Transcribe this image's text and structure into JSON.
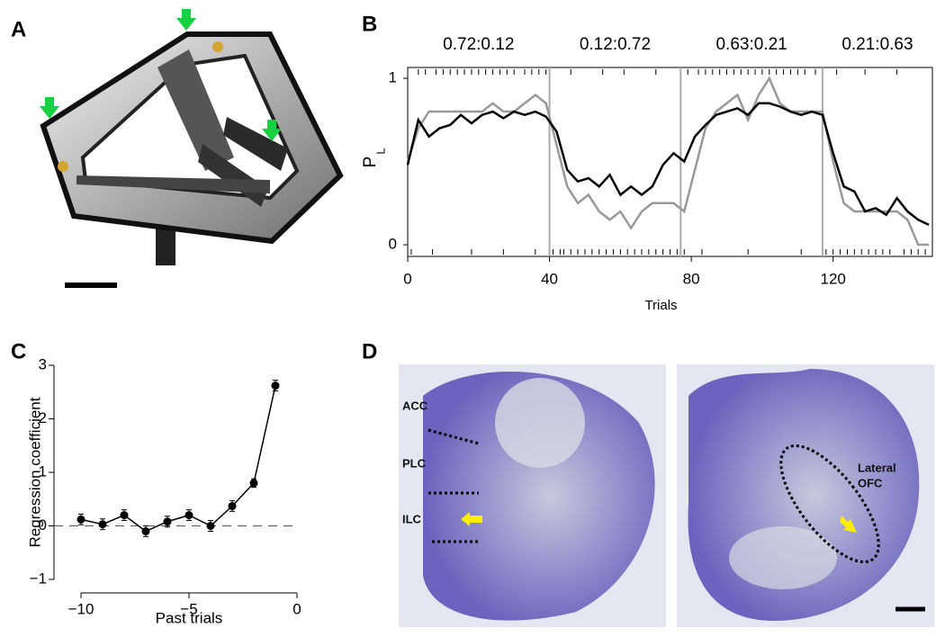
{
  "panel_labels": [
    "A",
    "B",
    "C",
    "D"
  ],
  "histology_labels": {
    "left": [
      "ACC",
      "PLC",
      "ILC"
    ],
    "right": [
      "Lateral",
      "OFC"
    ]
  },
  "chart_data": [
    {
      "type": "line",
      "ylabel": "P",
      "ylabel_subscript": "L",
      "xlabel": "Trials",
      "xlim": [
        0,
        148
      ],
      "ylim": [
        -0.07,
        1.065
      ],
      "xticks": [
        0,
        40,
        80,
        120
      ],
      "yticks": [
        0,
        1
      ],
      "block_boundaries": [
        40,
        77,
        117
      ],
      "annotations": [
        "0.72:0.12",
        "0.12:0.72",
        "0.63:0.21",
        "0.21:0.63"
      ],
      "x": [
        0,
        3,
        6,
        9,
        12,
        15,
        18,
        21,
        24,
        27,
        30,
        33,
        36,
        39,
        42,
        45,
        48,
        51,
        54,
        57,
        60,
        63,
        66,
        69,
        72,
        75,
        78,
        81,
        84,
        87,
        90,
        93,
        96,
        99,
        102,
        105,
        108,
        111,
        114,
        117,
        120,
        123,
        126,
        129,
        132,
        135,
        138,
        141,
        144,
        147
      ],
      "series": [
        {
          "color": "#999999",
          "values": [
            0.5,
            0.7,
            0.8,
            0.8,
            0.8,
            0.8,
            0.8,
            0.8,
            0.85,
            0.8,
            0.8,
            0.85,
            0.9,
            0.85,
            0.6,
            0.35,
            0.25,
            0.3,
            0.2,
            0.15,
            0.2,
            0.1,
            0.2,
            0.25,
            0.25,
            0.25,
            0.2,
            0.45,
            0.7,
            0.8,
            0.85,
            0.9,
            0.75,
            0.9,
            1.0,
            0.85,
            0.8,
            0.8,
            0.8,
            0.8,
            0.5,
            0.25,
            0.2,
            0.2,
            0.2,
            0.2,
            0.2,
            0.15,
            0.0,
            0.0
          ]
        },
        {
          "color": "#000000",
          "values": [
            0.48,
            0.75,
            0.65,
            0.7,
            0.72,
            0.78,
            0.73,
            0.78,
            0.8,
            0.76,
            0.8,
            0.78,
            0.8,
            0.77,
            0.68,
            0.45,
            0.38,
            0.4,
            0.35,
            0.42,
            0.3,
            0.35,
            0.3,
            0.35,
            0.48,
            0.55,
            0.5,
            0.65,
            0.72,
            0.78,
            0.8,
            0.82,
            0.78,
            0.85,
            0.85,
            0.83,
            0.8,
            0.78,
            0.8,
            0.78,
            0.55,
            0.35,
            0.32,
            0.2,
            0.22,
            0.18,
            0.28,
            0.2,
            0.15,
            0.12
          ]
        }
      ],
      "choices_top": [
        3,
        5,
        8,
        10,
        12,
        14,
        16,
        18,
        20,
        22,
        24,
        26,
        28,
        30,
        33,
        35,
        37,
        39,
        46,
        55,
        61,
        70,
        79,
        82,
        84,
        86,
        88,
        90,
        92,
        94,
        96,
        98,
        100,
        102,
        104,
        106,
        108,
        110,
        112,
        115,
        121,
        129,
        138
      ],
      "choices_bottom": [
        1,
        7,
        18,
        27,
        36,
        41,
        43,
        44,
        46,
        48,
        50,
        52,
        54,
        56,
        58,
        60,
        62,
        64,
        66,
        68,
        70,
        72,
        74,
        76,
        78,
        83,
        96,
        111,
        118,
        120,
        122,
        124,
        126,
        128,
        130,
        132,
        134,
        136,
        140,
        142,
        144,
        146
      ]
    },
    {
      "type": "errorbar",
      "xlabel": "Past trials",
      "ylabel": "Regression coefficient",
      "xlim": [
        -10,
        0
      ],
      "ylim": [
        -1,
        3
      ],
      "xticks": [
        {
          "value": -10,
          "label": "−10"
        },
        {
          "value": -5,
          "label": "−5"
        },
        0
      ],
      "yticks": [
        {
          "value": -1,
          "label": "−1"
        },
        0,
        1,
        2,
        3
      ],
      "zero_line": true,
      "x": [
        -10,
        -9,
        -8,
        -7,
        -6,
        -5,
        -4,
        -3,
        -2,
        -1
      ],
      "values": [
        0.12,
        0.03,
        0.2,
        -0.1,
        0.08,
        0.2,
        0.0,
        0.37,
        0.8,
        2.62
      ],
      "errors": [
        0.1,
        0.1,
        0.1,
        0.1,
        0.1,
        0.1,
        0.1,
        0.1,
        0.08,
        0.1
      ]
    }
  ]
}
